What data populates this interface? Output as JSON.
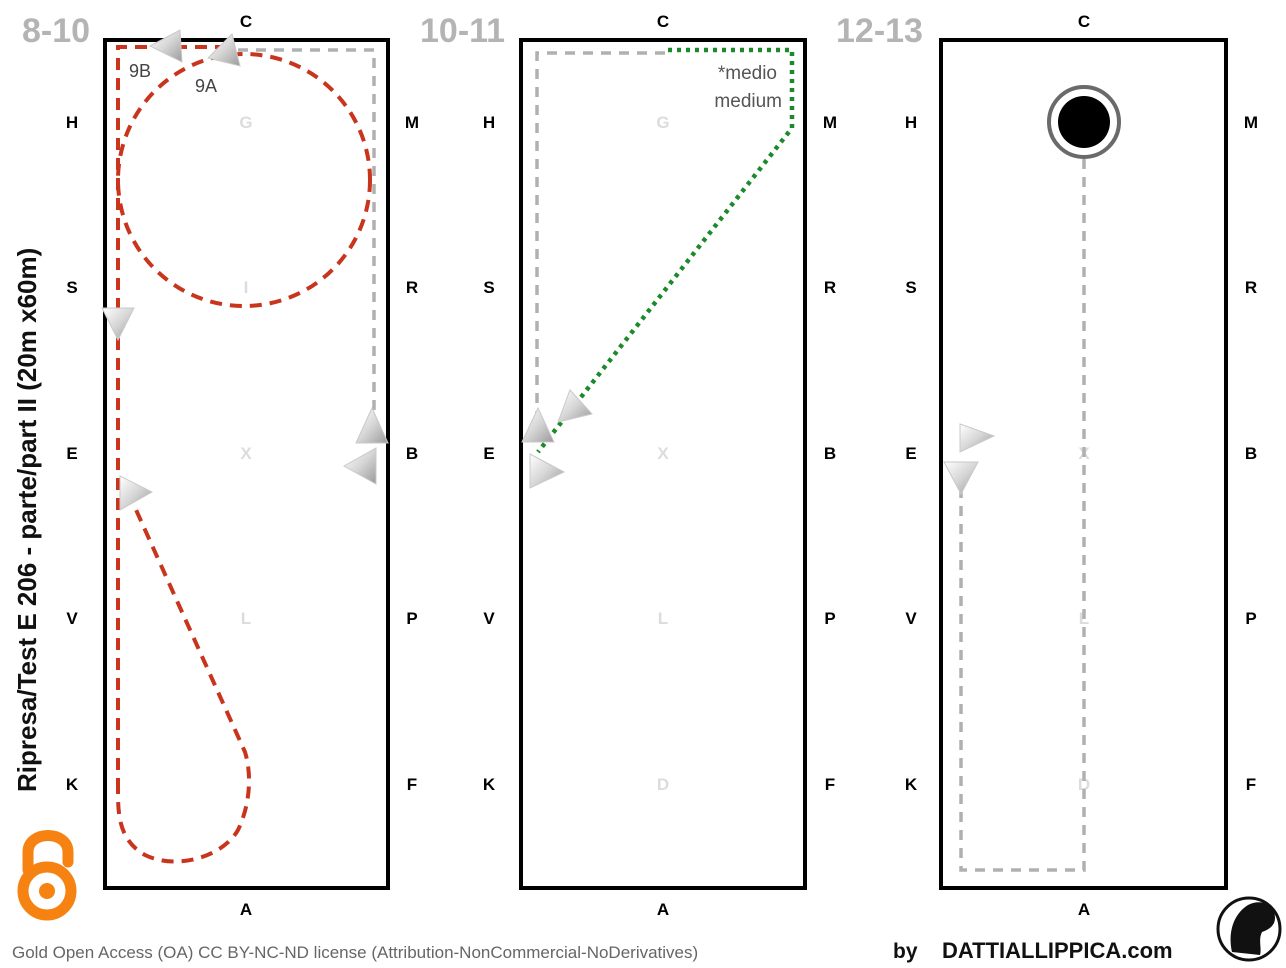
{
  "page_title": "Ripresa/Test E 206 - parte/part II  (20m x60m)",
  "panels": [
    {
      "title": "8-10",
      "top_letter": "C",
      "bottom_letter": "A",
      "left_letters": [
        "H",
        "S",
        "E",
        "V",
        "K"
      ],
      "right_letters": [
        "M",
        "R",
        "B",
        "P",
        "F"
      ],
      "center_letters": [
        "G",
        "I",
        "X",
        "L"
      ],
      "annotations": [
        "9B",
        "9A"
      ]
    },
    {
      "title": "10-11",
      "top_letter": "C",
      "bottom_letter": "A",
      "left_letters": [
        "H",
        "S",
        "E",
        "V",
        "K"
      ],
      "right_letters": [
        "M",
        "R",
        "B",
        "P",
        "F"
      ],
      "center_letters": [
        "G",
        "X",
        "L",
        "D"
      ],
      "annotations": [
        "*medio",
        "medium"
      ]
    },
    {
      "title": "12-13",
      "top_letter": "C",
      "bottom_letter": "A",
      "left_letters": [
        "H",
        "S",
        "E",
        "V",
        "K"
      ],
      "right_letters": [
        "M",
        "R",
        "B",
        "P",
        "F"
      ],
      "center_letters": [
        "X",
        "L",
        "D"
      ],
      "annotations": []
    }
  ],
  "footer": {
    "license": "Gold Open Access (OA) CC BY-NC-ND license (Attribution-NonCommercial-NoDerivatives)",
    "by_label": "by",
    "brand": "DATTIALLIPPICA.com"
  },
  "icons": {
    "open_access": "open-access-lock-icon",
    "brand_logo": "horse-head-logo-icon"
  },
  "colors": {
    "path_red": "#c8341c",
    "path_grey": "#b0b0b0",
    "path_green": "#1a8a2a",
    "open_access_orange": "#f68212",
    "section_title_grey": "#b4b4b4"
  }
}
